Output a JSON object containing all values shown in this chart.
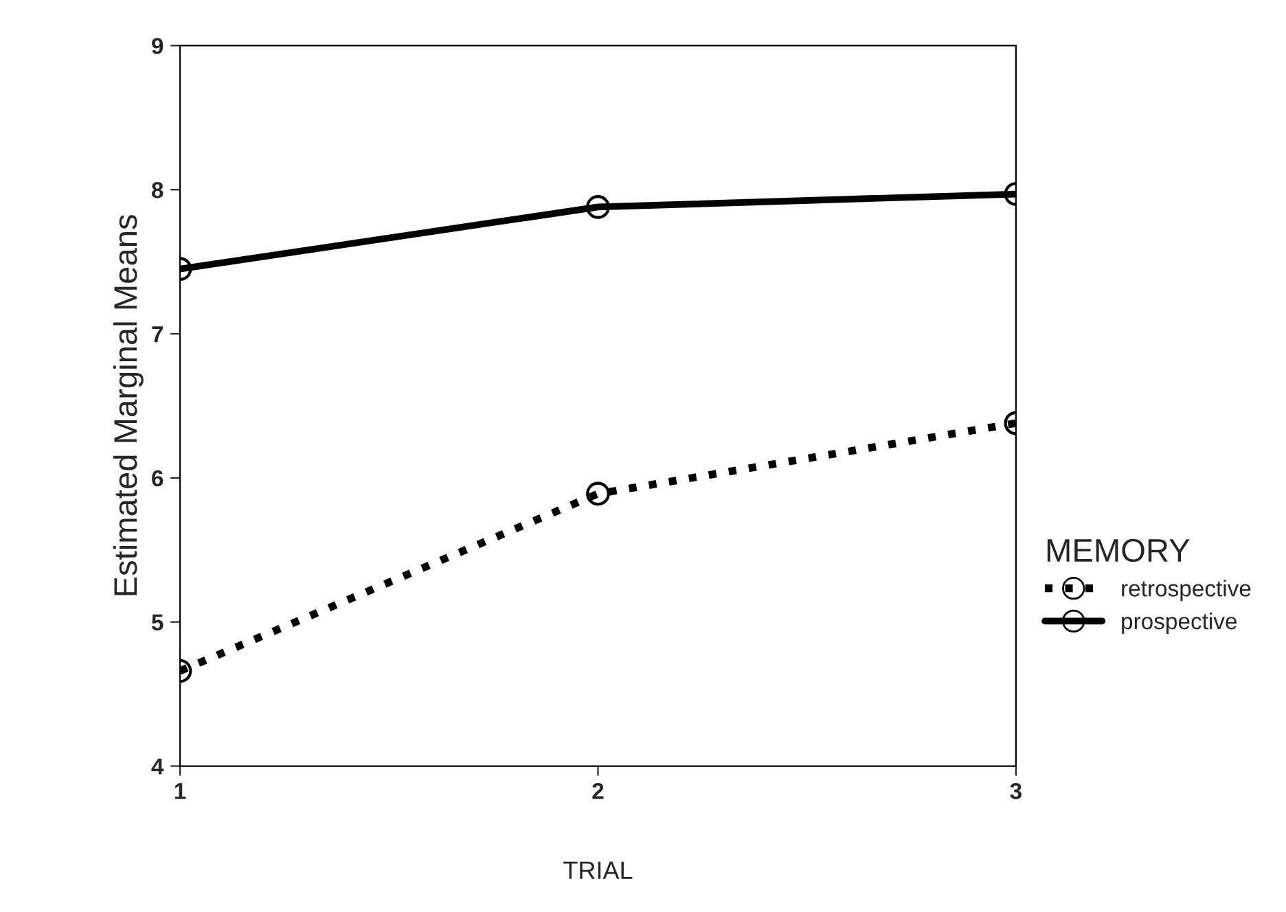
{
  "chart_data": {
    "type": "line",
    "xlabel": "TRIAL",
    "ylabel": "Estimated Marginal Means",
    "legend_title": "MEMORY",
    "x": [
      1,
      2,
      3
    ],
    "xlim": [
      1,
      3
    ],
    "xticks": [
      1,
      2,
      3
    ],
    "ylim": [
      4,
      9
    ],
    "yticks": [
      4,
      5,
      6,
      7,
      8,
      9
    ],
    "marker": "circle",
    "legend": "right",
    "grid": false,
    "series": [
      {
        "name": "retrospective",
        "color": "#000000",
        "line_style": "dotted",
        "values": [
          4.66,
          5.89,
          6.38
        ]
      },
      {
        "name": "prospective",
        "color": "#000000",
        "line_style": "solid",
        "values": [
          7.45,
          7.88,
          7.97
        ]
      }
    ]
  }
}
